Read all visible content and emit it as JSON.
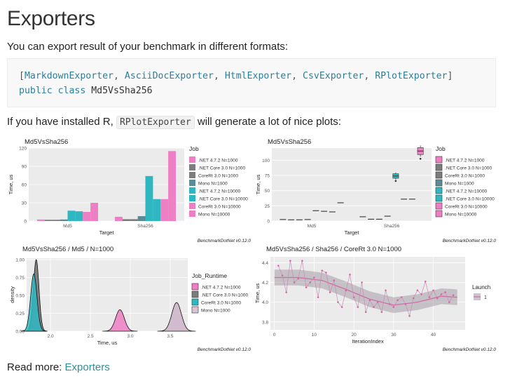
{
  "page": {
    "title": "Exporters",
    "intro": "You can export result of your benchmark in different formats:",
    "code": {
      "line1_parts": [
        "[",
        "MarkdownExporter",
        ", ",
        "AsciiDocExporter",
        ", ",
        "HtmlExporter",
        ", ",
        "CsvExporter",
        ", ",
        "RPlotExporter",
        "]"
      ],
      "line2_kw": "public class",
      "line2_name": "Md5VsSha256"
    },
    "r_line_before": "If you have installed R,",
    "r_line_code": "RPlotExporter",
    "r_line_after": "will generate a lot of nice plots:",
    "read_more_label": "Read more:",
    "read_more_link": "Exporters",
    "watermark": "BenchmarkDotNet v0.12.0"
  },
  "colors": {
    "net472_1000": "#ee7fc4",
    "netcore_1000": "#7a7a7a",
    "corert_1000": "#2fb7c1",
    "mono_1000": "#5a8a93",
    "pink": "#ee7fc4",
    "teal": "#2fb7c1",
    "plot_bg": "#ebebeb",
    "link": "#2f8f96"
  },
  "legend_job": {
    "title": "Job",
    "items": [
      ".NET 4.7.2 N=1000",
      ".NET Core 3.0 N=1000",
      "CoreRt 3.0 N=1000",
      "Mono N=1000",
      ".NET 4.7.2 N=10000",
      ".NET Core 3.0 N=10000",
      "CoreRt 3.0 N=10000",
      "Mono N=10000"
    ]
  },
  "legend_runtime": {
    "title": "Job_Runtime",
    "items": [
      ".NET 4.7.2 N=1000",
      ".NET Core 3.0 N=1000",
      "CoreRt 3.0 N=1000",
      "Mono N=1000"
    ]
  },
  "legend_launch": {
    "title": "Launch",
    "items": [
      "1"
    ]
  },
  "chart_data": [
    {
      "type": "bar",
      "title": "Md5VsSha256",
      "xlabel": "Target",
      "ylabel": "Time, us",
      "categories": [
        "Md5",
        "Sha256"
      ],
      "ylim": [
        0,
        120
      ],
      "yticks": [
        0,
        30,
        60,
        90,
        120
      ],
      "series": [
        {
          "name": ".NET 4.7.2 N=1000",
          "values": [
            2.5,
            7
          ]
        },
        {
          "name": ".NET Core 3.0 N=1000",
          "values": [
            2,
            3
          ]
        },
        {
          "name": "CoreRt 3.0 N=1000",
          "values": [
            2,
            3
          ]
        },
        {
          "name": "Mono N=1000",
          "values": [
            2.5,
            8
          ]
        },
        {
          "name": ".NET 4.7.2 N=10000",
          "values": [
            17,
            74
          ]
        },
        {
          "name": ".NET Core 3.0 N=10000",
          "values": [
            16,
            36
          ]
        },
        {
          "name": "CoreRt 3.0 N=10000",
          "values": [
            15,
            36
          ]
        },
        {
          "name": "Mono N=10000",
          "values": [
            30,
            115
          ]
        }
      ]
    },
    {
      "type": "box",
      "title": "Md5VsSha256",
      "xlabel": "Target",
      "ylabel": "Time, us",
      "categories": [
        "Md5",
        "Sha256"
      ],
      "ylim": [
        0,
        120
      ],
      "yticks": [
        0,
        25,
        50,
        75,
        100
      ],
      "series": [
        {
          "name": ".NET 4.7.2 N=1000",
          "values": [
            2.5,
            7
          ]
        },
        {
          "name": ".NET Core 3.0 N=1000",
          "values": [
            2,
            3
          ]
        },
        {
          "name": "CoreRt 3.0 N=1000",
          "values": [
            2,
            3
          ]
        },
        {
          "name": "Mono N=1000",
          "values": [
            2.5,
            8
          ]
        },
        {
          "name": ".NET 4.7.2 N=10000",
          "values": [
            17,
            74
          ]
        },
        {
          "name": ".NET Core 3.0 N=10000",
          "values": [
            16,
            36
          ]
        },
        {
          "name": "CoreRt 3.0 N=10000",
          "values": [
            15,
            36
          ]
        },
        {
          "name": "Mono N=10000",
          "values": [
            30,
            115
          ]
        }
      ]
    },
    {
      "type": "area",
      "title": "Md5VsSha256 / Md5 / N=1000",
      "xlabel": "Time, us",
      "ylabel": "density",
      "xlim": [
        1.7,
        3.72
      ],
      "ylim": [
        0,
        1.02
      ],
      "xticks": [
        2.0,
        2.5,
        3.0,
        3.5
      ],
      "yticks": [
        0.0,
        0.25,
        0.5,
        0.75,
        1.0
      ],
      "series": [
        {
          "name": ".NET 4.7.2 N=1000",
          "mean": 2.87,
          "sd": 0.055,
          "peak": 0.3
        },
        {
          "name": ".NET Core 3.0 N=1000",
          "mean": 1.82,
          "sd": 0.035,
          "peak": 1.0
        },
        {
          "name": "CoreRt 3.0 N=1000",
          "mean": 1.79,
          "sd": 0.04,
          "peak": 0.8
        },
        {
          "name": "Mono N=1000",
          "mean": 3.58,
          "sd": 0.06,
          "peak": 0.4
        }
      ]
    },
    {
      "type": "line",
      "title": "Md5VsSha256 / Sha256 / CoreRt 3.0 N=1000",
      "xlabel": "IterationIndex",
      "ylabel": "Time, us",
      "xlim": [
        -1,
        48
      ],
      "ylim": [
        3.72,
        4.46
      ],
      "xticks": [
        0,
        10,
        20,
        30,
        40
      ],
      "yticks": [
        3.8,
        4.0,
        4.2,
        4.4
      ],
      "x": [
        1,
        2,
        3,
        4,
        5,
        6,
        7,
        8,
        9,
        10,
        11,
        12,
        13,
        14,
        15,
        16,
        17,
        18,
        19,
        20,
        21,
        22,
        23,
        24,
        25,
        26,
        27,
        28,
        29,
        30,
        31,
        32,
        33,
        34,
        35,
        36,
        37,
        38,
        39,
        40,
        41,
        42,
        43,
        44,
        45
      ],
      "y": [
        4.37,
        4.27,
        4.1,
        4.42,
        4.2,
        4.24,
        4.42,
        4.15,
        4.2,
        4.25,
        4.05,
        4.32,
        4.3,
        4.1,
        4.22,
        4.0,
        3.95,
        4.12,
        4.28,
        4.05,
        3.95,
        4.2,
        3.9,
        4.02,
        3.95,
        4.0,
        3.9,
        4.12,
        3.98,
        3.95,
        4.02,
        4.05,
        3.98,
        3.86,
        4.04,
        4.12,
        4.08,
        4.21,
        4.05,
        4.12,
        4.04,
        4.08,
        4.1,
        4.0,
        4.07
      ],
      "trend_x": [
        0,
        6,
        12,
        18,
        24,
        30,
        36,
        42,
        46
      ],
      "trend_y": [
        4.25,
        4.25,
        4.22,
        4.13,
        4.03,
        3.97,
        4.0,
        4.06,
        4.05
      ],
      "band": 0.08
    }
  ]
}
